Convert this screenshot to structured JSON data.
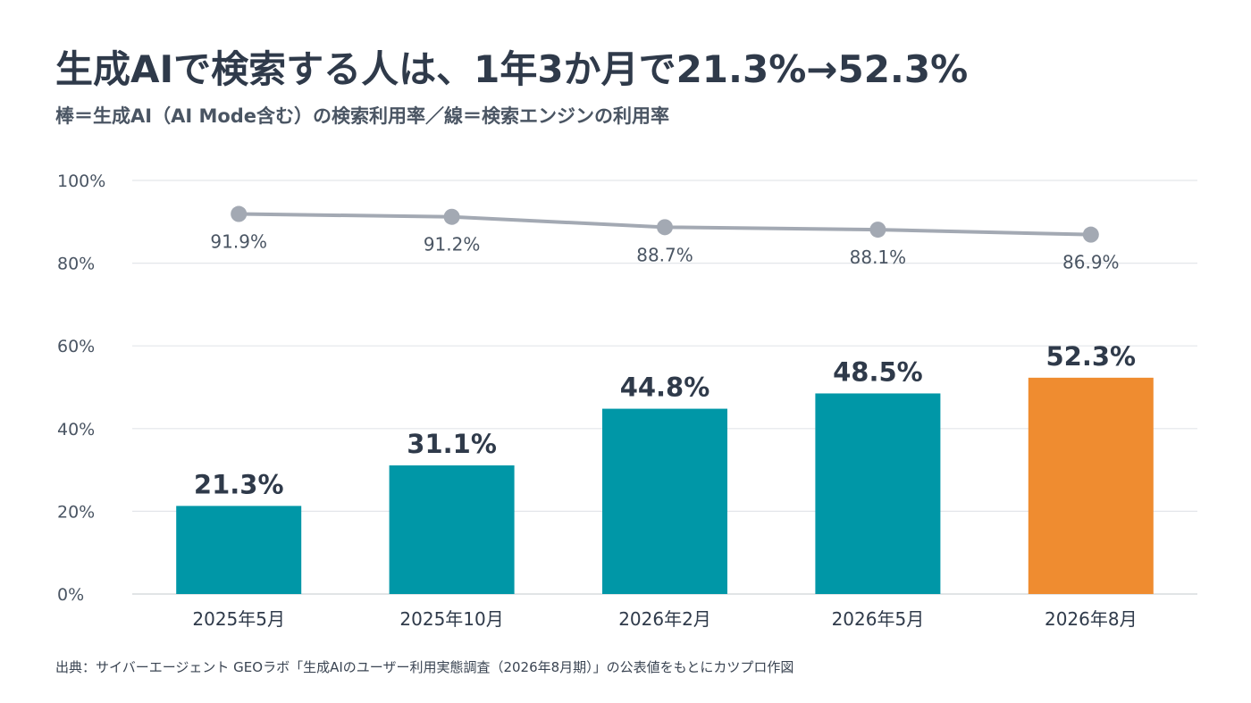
{
  "header": {
    "title": "生成AIで検索する人は、1年3か月で21.3%→52.3%",
    "subtitle": "棒＝生成AI（AI Mode含む）の検索利用率／線＝検索エンジンの利用率"
  },
  "source": "出典：サイバーエージェント GEOラボ「生成AIのユーザー利用実態調査（2026年8月期）」の公表値をもとにカツプロ作図",
  "chart_data": {
    "type": "bar",
    "categories": [
      "2025年5月",
      "2025年10月",
      "2026年2月",
      "2026年5月",
      "2026年8月"
    ],
    "ylim": [
      0,
      100
    ],
    "y_ticks": [
      "0%",
      "20%",
      "40%",
      "60%",
      "80%",
      "100%"
    ],
    "grid": true,
    "series": [
      {
        "kind": "bar",
        "values": [
          21.3,
          31.1,
          44.8,
          48.5,
          52.3
        ],
        "labels": [
          "21.3%",
          "31.1%",
          "44.8%",
          "48.5%",
          "52.3%"
        ],
        "colors": [
          "#0097a7",
          "#0097a7",
          "#0097a7",
          "#0097a7",
          "#ef8c30"
        ]
      },
      {
        "kind": "line",
        "values": [
          91.9,
          91.2,
          88.7,
          88.1,
          86.9
        ],
        "labels": [
          "91.9%",
          "91.2%",
          "88.7%",
          "88.1%",
          "86.9%"
        ],
        "color": "#a3a9b3"
      }
    ]
  }
}
